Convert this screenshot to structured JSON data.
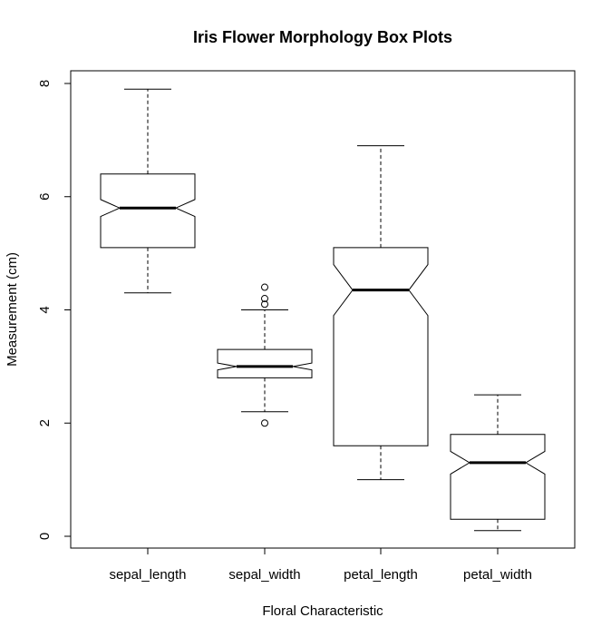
{
  "chart_data": {
    "type": "boxplot",
    "notched": true,
    "title": "Iris Flower Morphology Box Plots",
    "xlabel": "Floral Characteristic",
    "ylabel": "Measurement (cm)",
    "ylim": [
      -0.2,
      8.2
    ],
    "yticks": [
      0,
      2,
      4,
      6,
      8
    ],
    "grid": false,
    "categories": [
      "sepal_length",
      "sepal_width",
      "petal_length",
      "petal_width"
    ],
    "boxes": [
      {
        "name": "sepal_length",
        "whisker_low": 4.3,
        "q1": 5.1,
        "median": 5.8,
        "q3": 6.4,
        "whisker_high": 7.9,
        "notch_low": 5.65,
        "notch_high": 5.95,
        "outliers": []
      },
      {
        "name": "sepal_width",
        "whisker_low": 2.2,
        "q1": 2.8,
        "median": 3.0,
        "q3": 3.3,
        "whisker_high": 4.0,
        "notch_low": 2.94,
        "notch_high": 3.06,
        "outliers": [
          2.0,
          4.1,
          4.2,
          4.4
        ]
      },
      {
        "name": "petal_length",
        "whisker_low": 1.0,
        "q1": 1.6,
        "median": 4.35,
        "q3": 5.1,
        "whisker_high": 6.9,
        "notch_low": 3.9,
        "notch_high": 4.8,
        "outliers": []
      },
      {
        "name": "petal_width",
        "whisker_low": 0.1,
        "q1": 0.3,
        "median": 1.3,
        "q3": 1.8,
        "whisker_high": 2.5,
        "notch_low": 1.1,
        "notch_high": 1.5,
        "outliers": []
      }
    ]
  }
}
